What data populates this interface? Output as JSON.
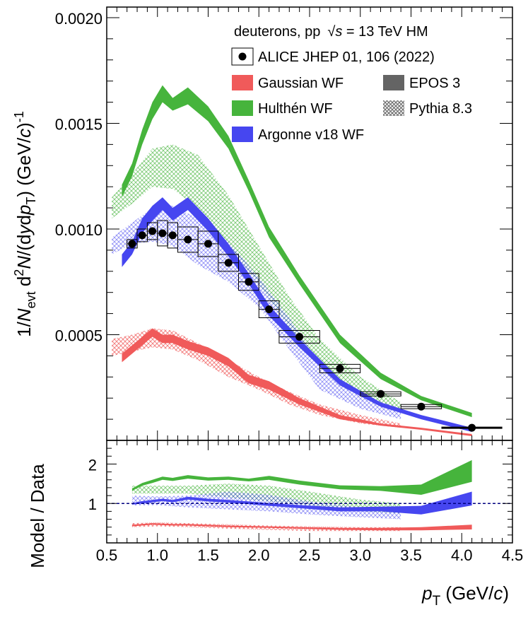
{
  "colors": {
    "gaussian": "#f05a5a",
    "hulthen": "#46b43c",
    "argonne": "#4646f0",
    "data": "#000000",
    "ref_line": "#000080"
  },
  "labels": {
    "system": "deuterons, pp",
    "sqrt": "√",
    "s": "s",
    "energy": " = 13 TeV HM",
    "ylabel_parts": [
      "1/",
      "N",
      "evt",
      " d",
      "2",
      "N",
      "/(d",
      "y",
      "d",
      "p",
      "T",
      ") (GeV/",
      "c",
      ")",
      "-1"
    ],
    "ratio_ylabel": "Model / Data",
    "xlabel_p": "p",
    "xlabel_T": "T",
    "xlabel_unit": " (GeV/",
    "xlabel_c": "c",
    "xlabel_close": ")"
  },
  "chart_data": [
    {
      "type": "scatter",
      "xlim": [
        0.5,
        4.5
      ],
      "ylim": [
        0,
        0.00205
      ],
      "yticks": [
        "0.0005",
        "0.0010",
        "0.0015",
        "0.0020"
      ],
      "legend_placement": "top-right",
      "legend": [
        {
          "key": "data",
          "label": "ALICE JHEP 01, 106 (2022)",
          "style": "marker"
        },
        {
          "key": "gaussian",
          "label": "Gaussian WF",
          "style": "solid"
        },
        {
          "key": "hulthen",
          "label": "Hulthén WF",
          "style": "solid"
        },
        {
          "key": "argonne",
          "label": "Argonne v18 WF",
          "style": "solid"
        },
        {
          "key": "epos",
          "label": "EPOS 3",
          "style": "solid-gray"
        },
        {
          "key": "pythia",
          "label": "Pythia 8.3",
          "style": "hatch-gray"
        }
      ],
      "data": {
        "x": [
          0.75,
          0.85,
          0.95,
          1.05,
          1.15,
          1.3,
          1.5,
          1.7,
          1.9,
          2.1,
          2.4,
          2.8,
          3.2,
          3.6,
          4.1
        ],
        "y": [
          0.00093,
          0.00097,
          0.00099,
          0.00098,
          0.00097,
          0.00095,
          0.00093,
          0.00084,
          0.00075,
          0.00062,
          0.00049,
          0.00034,
          0.00022,
          0.00016,
          6e-05
        ],
        "xerr": [
          0.05,
          0.05,
          0.05,
          0.05,
          0.05,
          0.1,
          0.1,
          0.1,
          0.1,
          0.1,
          0.2,
          0.2,
          0.2,
          0.2,
          0.3
        ],
        "syst": [
          2e-05,
          3e-05,
          4e-05,
          6e-05,
          6e-05,
          6e-05,
          6e-05,
          4e-05,
          4e-05,
          4e-05,
          3e-05,
          2e-05,
          1e-05,
          1e-05,
          0.0
        ]
      },
      "epos_bands": [
        {
          "key": "gaussian",
          "x": [
            0.65,
            0.75,
            0.85,
            0.95,
            1.05,
            1.15,
            1.3,
            1.5,
            1.7,
            1.9,
            2.1,
            2.4,
            2.8,
            3.2,
            3.6,
            4.1
          ],
          "low": [
            0.00037,
            0.00041,
            0.00045,
            0.00049,
            0.00046,
            0.00046,
            0.00043,
            0.0004,
            0.00035,
            0.00027,
            0.00024,
            0.00017,
            0.0001,
            7e-05,
            5e-05,
            2e-05
          ],
          "high": [
            0.00041,
            0.00045,
            0.00049,
            0.00053,
            0.0005,
            0.0005,
            0.00047,
            0.00044,
            0.00039,
            0.00031,
            0.00028,
            0.0002,
            0.00012,
            8e-05,
            6e-05,
            3e-05
          ]
        },
        {
          "key": "hulthen",
          "x": [
            0.65,
            0.75,
            0.85,
            0.95,
            1.05,
            1.15,
            1.3,
            1.5,
            1.7,
            1.9,
            2.1,
            2.4,
            2.8,
            3.2,
            3.6,
            4.1
          ],
          "low": [
            0.00115,
            0.00125,
            0.0014,
            0.00152,
            0.0016,
            0.00156,
            0.00159,
            0.00151,
            0.00138,
            0.00118,
            0.00096,
            0.00074,
            0.00046,
            0.00029,
            0.00019,
            0.00011
          ],
          "high": [
            0.00121,
            0.00131,
            0.00147,
            0.0016,
            0.00168,
            0.00162,
            0.00167,
            0.00158,
            0.00144,
            0.00123,
            0.00101,
            0.00078,
            0.0005,
            0.00032,
            0.00021,
            0.00013
          ]
        },
        {
          "key": "argonne",
          "x": [
            0.65,
            0.75,
            0.85,
            0.95,
            1.05,
            1.15,
            1.3,
            1.5,
            1.7,
            1.9,
            2.1,
            2.4,
            2.8,
            3.2,
            3.6,
            4.1
          ],
          "low": [
            0.00082,
            0.00088,
            0.00098,
            0.00104,
            0.00109,
            0.00104,
            0.00109,
            0.00099,
            0.00087,
            0.00074,
            0.00059,
            0.00044,
            0.00026,
            0.00016,
            0.0001,
            4e-05
          ],
          "high": [
            0.00088,
            0.00094,
            0.00105,
            0.00111,
            0.00115,
            0.0011,
            0.00115,
            0.00105,
            0.00093,
            0.00079,
            0.00064,
            0.00048,
            0.00029,
            0.00018,
            0.00012,
            6e-05
          ]
        }
      ],
      "pythia_bands": [
        {
          "key": "gaussian",
          "x": [
            0.55,
            0.75,
            0.95,
            1.15,
            1.4,
            1.7,
            2.0,
            2.3,
            2.6,
            3.0,
            3.4
          ],
          "low": [
            0.0004,
            0.00042,
            0.00044,
            0.00043,
            0.00038,
            0.0003,
            0.00024,
            0.00017,
            0.00012,
            8e-05,
            6e-05
          ],
          "high": [
            0.00048,
            0.0005,
            0.00053,
            0.00052,
            0.00046,
            0.00038,
            0.0003,
            0.00023,
            0.00017,
            0.00012,
            8e-05
          ]
        },
        {
          "key": "hulthen",
          "x": [
            0.55,
            0.75,
            0.95,
            1.15,
            1.4,
            1.7,
            2.0,
            2.3,
            2.6,
            3.0,
            3.4
          ],
          "low": [
            0.00105,
            0.00112,
            0.0012,
            0.00119,
            0.0011,
            0.00092,
            0.00074,
            0.00053,
            0.00036,
            0.00022,
            0.00013
          ],
          "high": [
            0.00115,
            0.00126,
            0.00138,
            0.0014,
            0.00135,
            0.00116,
            0.00092,
            0.00068,
            0.00048,
            0.0003,
            0.00018
          ]
        },
        {
          "key": "argonne",
          "x": [
            0.55,
            0.75,
            0.95,
            1.15,
            1.4,
            1.7,
            2.0,
            2.3,
            2.6,
            3.0,
            3.4
          ],
          "low": [
            0.00088,
            0.00093,
            0.00094,
            0.00092,
            0.00083,
            0.00075,
            0.00063,
            0.00043,
            0.00024,
            0.00015,
            0.0001
          ],
          "high": [
            0.00096,
            0.00103,
            0.0011,
            0.00111,
            0.00105,
            0.00094,
            0.00077,
            0.00058,
            0.00036,
            0.00022,
            0.00015
          ]
        }
      ]
    },
    {
      "type": "area",
      "xlim": [
        0.5,
        4.5
      ],
      "ylim": [
        0,
        2.6
      ],
      "xticks": [
        "0.5",
        "1.0",
        "1.5",
        "2.0",
        "2.5",
        "3.0",
        "3.5",
        "4.0",
        "4.5"
      ],
      "yticks": [
        "1",
        "2"
      ],
      "reference_line": 1,
      "epos_bands": [
        {
          "key": "gaussian",
          "x": [
            0.75,
            0.95,
            1.15,
            1.3,
            1.7,
            2.1,
            2.4,
            2.8,
            3.2,
            3.6,
            4.1
          ],
          "low": [
            0.42,
            0.46,
            0.44,
            0.44,
            0.4,
            0.38,
            0.36,
            0.33,
            0.32,
            0.32,
            0.34
          ],
          "high": [
            0.46,
            0.5,
            0.48,
            0.48,
            0.44,
            0.42,
            0.4,
            0.38,
            0.38,
            0.4,
            0.46
          ]
        },
        {
          "key": "hulthen",
          "x": [
            0.75,
            0.85,
            0.95,
            1.05,
            1.15,
            1.3,
            1.5,
            1.7,
            1.9,
            2.1,
            2.4,
            2.8,
            3.2,
            3.6,
            4.1
          ],
          "low": [
            1.32,
            1.45,
            1.52,
            1.6,
            1.57,
            1.63,
            1.58,
            1.6,
            1.56,
            1.6,
            1.48,
            1.36,
            1.32,
            1.22,
            1.55
          ],
          "high": [
            1.38,
            1.52,
            1.6,
            1.68,
            1.65,
            1.72,
            1.66,
            1.68,
            1.63,
            1.7,
            1.58,
            1.46,
            1.44,
            1.48,
            2.1
          ]
        },
        {
          "key": "argonne",
          "x": [
            0.75,
            0.85,
            0.95,
            1.05,
            1.15,
            1.3,
            1.5,
            1.7,
            1.9,
            2.1,
            2.4,
            2.8,
            3.2,
            3.6,
            4.1
          ],
          "low": [
            0.97,
            1.0,
            1.03,
            1.06,
            1.03,
            1.1,
            1.05,
            1.02,
            0.98,
            0.94,
            0.88,
            0.8,
            0.8,
            0.72,
            0.95
          ],
          "high": [
            1.01,
            1.06,
            1.09,
            1.12,
            1.09,
            1.17,
            1.12,
            1.09,
            1.05,
            1.01,
            0.96,
            0.9,
            0.92,
            0.94,
            1.3
          ]
        }
      ],
      "pythia_bands": [
        {
          "key": "gaussian",
          "x": [
            0.75,
            1.0,
            1.3,
            1.7,
            2.1,
            2.5,
            3.0,
            3.4
          ],
          "low": [
            0.4,
            0.42,
            0.4,
            0.36,
            0.33,
            0.3,
            0.3,
            0.3
          ],
          "high": [
            0.5,
            0.52,
            0.5,
            0.47,
            0.44,
            0.42,
            0.4,
            0.4
          ]
        },
        {
          "key": "hulthen",
          "x": [
            0.75,
            1.0,
            1.3,
            1.7,
            2.1,
            2.5,
            3.0,
            3.4
          ],
          "low": [
            1.25,
            1.25,
            1.25,
            1.15,
            1.05,
            0.95,
            0.8,
            0.75
          ],
          "high": [
            1.45,
            1.45,
            1.45,
            1.5,
            1.45,
            1.3,
            1.1,
            1.0
          ]
        },
        {
          "key": "argonne",
          "x": [
            0.75,
            1.0,
            1.3,
            1.7,
            2.1,
            2.5,
            3.0,
            3.4
          ],
          "low": [
            0.95,
            0.96,
            0.9,
            0.85,
            0.8,
            0.72,
            0.65,
            0.6
          ],
          "high": [
            1.2,
            1.18,
            1.2,
            1.3,
            1.22,
            1.05,
            0.9,
            0.8
          ]
        }
      ]
    }
  ]
}
